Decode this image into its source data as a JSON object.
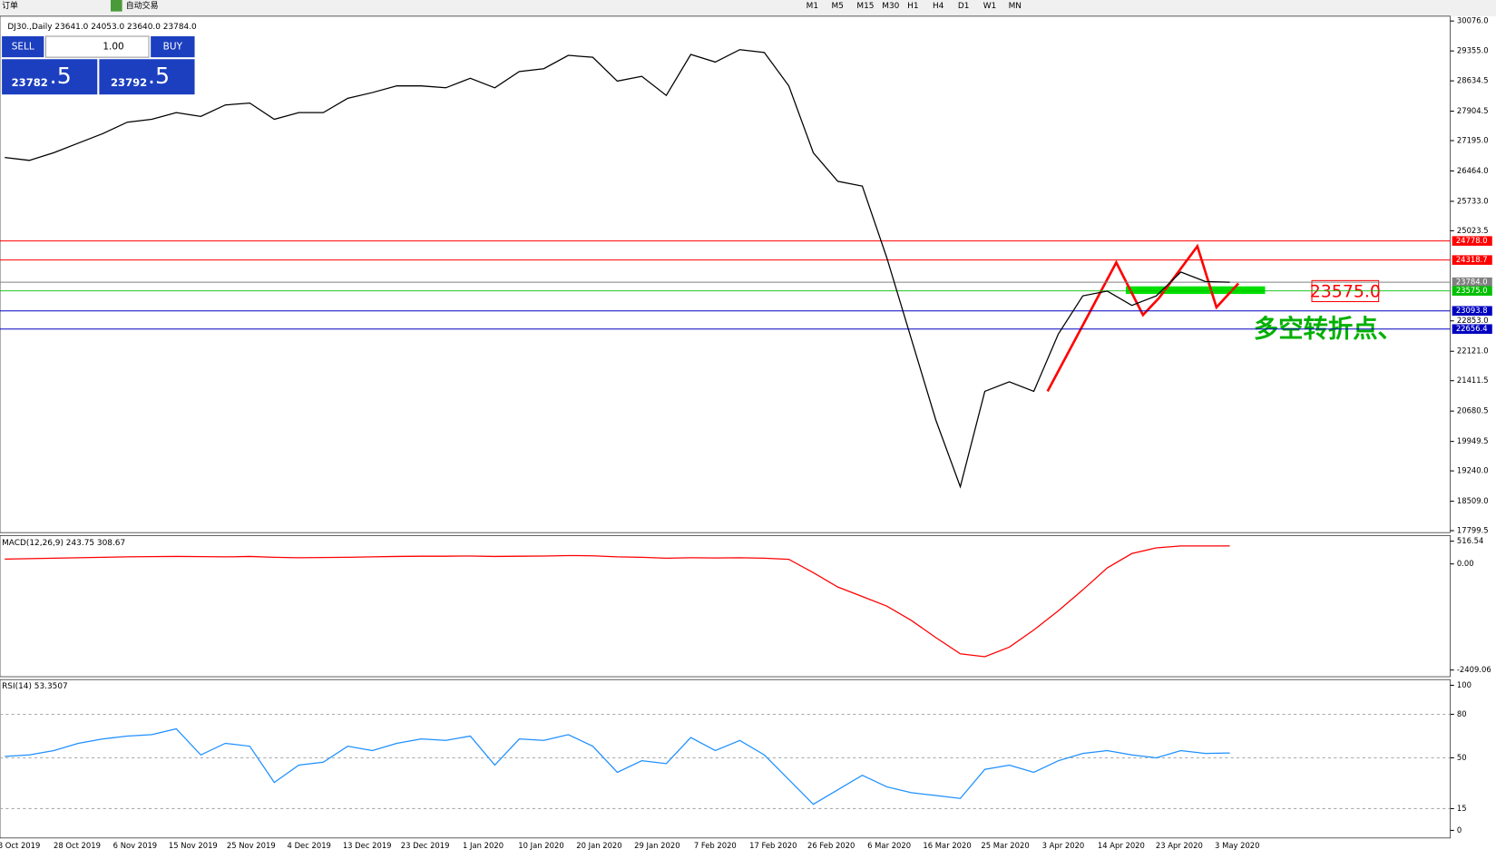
{
  "toolbar": {
    "items": [
      "订单",
      "自动交易"
    ],
    "timeframes": [
      "M1",
      "M5",
      "M15",
      "M30",
      "H1",
      "H4",
      "D1",
      "W1",
      "MN"
    ]
  },
  "trade_panel": {
    "sell": "SELL",
    "buy": "BUY",
    "volume": "1.00",
    "sell_price": "23782",
    "sell_frac": ".5",
    "buy_price": "23792",
    "buy_frac": ".5"
  },
  "price_panel": {
    "symbol_info": "DJ30.,Daily  23641.0 24053.0 23640.0 23784.0",
    "ylim": [
      17799.5,
      30076.0
    ],
    "yticks": [
      {
        "value": 30076.0,
        "label": "30076.0"
      },
      {
        "value": 29355.0,
        "label": "29355.0"
      },
      {
        "value": 28634.5,
        "label": "28634.5"
      },
      {
        "value": 27904.5,
        "label": "27904.5"
      },
      {
        "value": 27195.0,
        "label": "27195.0"
      },
      {
        "value": 26464.0,
        "label": "26464.0"
      },
      {
        "value": 25733.0,
        "label": "25733.0"
      },
      {
        "value": 25023.5,
        "label": "25023.5"
      },
      {
        "value": 22853.0,
        "label": "22853.0"
      },
      {
        "value": 22121.0,
        "label": "22121.0"
      },
      {
        "value": 21411.5,
        "label": "21411.5"
      },
      {
        "value": 20680.5,
        "label": "20680.5"
      },
      {
        "value": 19949.5,
        "label": "19949.5"
      },
      {
        "value": 19240.0,
        "label": "19240.0"
      },
      {
        "value": 18509.0,
        "label": "18509.0"
      },
      {
        "value": 17799.5,
        "label": "17799.5"
      }
    ],
    "levels": [
      {
        "value": 24778.0,
        "label": "24778.0",
        "color": "#ff0000"
      },
      {
        "value": 24318.7,
        "label": "24318.7",
        "color": "#ff0000"
      },
      {
        "value": 23784.0,
        "label": "23784.0",
        "color": "#808080"
      },
      {
        "value": 23575.0,
        "label": "23575.0",
        "color": "#00c000"
      },
      {
        "value": 23093.8,
        "label": "23093.8",
        "color": "#0000c0"
      },
      {
        "value": 22656.4,
        "label": "22656.4",
        "color": "#0000c0"
      }
    ],
    "close": [
      26788,
      26719,
      26903,
      27133,
      27363,
      27639,
      27708,
      27869,
      27777,
      28053,
      28099,
      27708,
      27869,
      27869,
      28214,
      28352,
      28513,
      28513,
      28467,
      28697,
      28467,
      28858,
      28927,
      29248,
      29202,
      28628,
      28743,
      28283,
      29271,
      29087,
      29386,
      29317,
      28513,
      26903,
      26214,
      26099,
      24374,
      22420,
      20466,
      18857,
      21156,
      21386,
      21156,
      22535,
      23455,
      23570,
      23225,
      23455,
      24030,
      23800,
      23784
    ],
    "annotation_price": "23575.0",
    "annotation_text": "多空转折点、"
  },
  "macd_panel": {
    "label": "MACD(12,26,9) 243.75 308.67",
    "ylim": [
      -2409.06,
      516.54
    ],
    "yticks": [
      {
        "value": 516.54,
        "label": "516.54"
      },
      {
        "value": 0,
        "label": "0.00"
      },
      {
        "value": -2409.06,
        "label": "-2409.06"
      }
    ],
    "signal": [
      110,
      120,
      130,
      140,
      150,
      160,
      165,
      170,
      165,
      160,
      170,
      150,
      140,
      145,
      150,
      160,
      170,
      175,
      175,
      180,
      170,
      175,
      180,
      190,
      185,
      160,
      150,
      130,
      140,
      135,
      140,
      130,
      105,
      -199,
      -524,
      -740,
      -957,
      -1282,
      -1672,
      -2041,
      -2106,
      -1889,
      -1499,
      -1065,
      -589,
      -90,
      235,
      365,
      408,
      408,
      408
    ]
  },
  "rsi_panel": {
    "label": "RSI(14) 53.3507",
    "ylim": [
      0,
      100
    ],
    "yticks": [
      100,
      80,
      50,
      15,
      0
    ],
    "levels": [
      80,
      50,
      15
    ],
    "values": [
      51,
      52,
      55,
      60,
      63,
      65,
      66,
      70,
      52,
      60,
      58,
      33,
      45,
      47,
      58,
      55,
      60,
      63,
      62,
      65,
      45,
      63,
      62,
      66,
      58,
      40,
      48,
      46,
      64,
      55,
      62,
      52,
      35,
      18,
      28,
      38,
      30,
      26,
      24,
      22,
      42,
      45,
      40,
      48,
      53,
      55,
      52,
      50,
      55,
      53,
      53.35
    ]
  },
  "dates": [
    "8 Oct 2019",
    "28 Oct 2019",
    "6 Nov 2019",
    "15 Nov 2019",
    "25 Nov 2019",
    "4 Dec 2019",
    "13 Dec 2019",
    "23 Dec 2019",
    "1 Jan 2020",
    "10 Jan 2020",
    "20 Jan 2020",
    "29 Jan 2020",
    "7 Feb 2020",
    "17 Feb 2020",
    "26 Feb 2020",
    "6 Mar 2020",
    "16 Mar 2020",
    "25 Mar 2020",
    "3 Apr 2020",
    "14 Apr 2020",
    "23 Apr 2020",
    "3 May 2020"
  ]
}
